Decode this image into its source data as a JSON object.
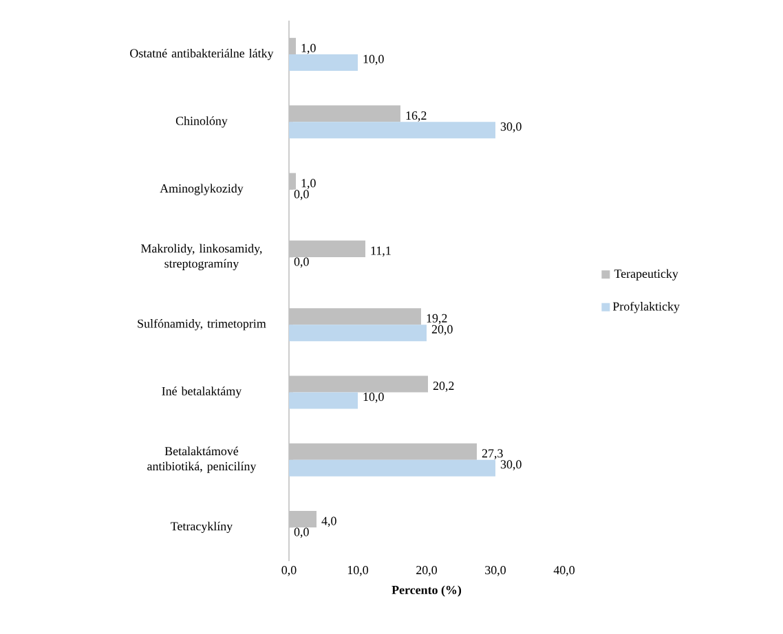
{
  "chart_data": {
    "type": "bar",
    "orientation": "horizontal",
    "xlabel": "Percento (%)",
    "categories": [
      "Ostatné antibakteriálne látky",
      "Chinolóny",
      "Aminoglykozidy",
      "Makrolidy, linkosamidy, streptogramíny",
      "Sulfónamidy, trimetoprim",
      "Iné betalaktámy",
      "Betalaktámové antibiotiká, penicilíny",
      "Tetracyklíny"
    ],
    "series": [
      {
        "name": "Terapeuticky",
        "color": "#bfbfbf",
        "values": [
          1.0,
          16.2,
          1.0,
          11.1,
          19.2,
          20.2,
          27.3,
          4.0
        ],
        "value_labels": [
          "1,0",
          "16,2",
          "1,0",
          "11,1",
          "19,2",
          "20,2",
          "27,3",
          "4,0"
        ]
      },
      {
        "name": "Profylakticky",
        "color": "#bdd7ee",
        "values": [
          10.0,
          30.0,
          0.0,
          0.0,
          20.0,
          10.0,
          30.0,
          0.0
        ],
        "value_labels": [
          "10,0",
          "30,0",
          "0,0",
          "0,0",
          "20,0",
          "10,0",
          "30,0",
          "0,0"
        ]
      }
    ],
    "xlim": [
      0,
      40
    ],
    "xticks": [
      {
        "value": 0,
        "label": "0,0"
      },
      {
        "value": 10,
        "label": "10,0"
      },
      {
        "value": 20,
        "label": "20,0"
      },
      {
        "value": 30,
        "label": "30,0"
      },
      {
        "value": 40,
        "label": "40,0"
      }
    ],
    "grid": false,
    "legend": "right"
  }
}
